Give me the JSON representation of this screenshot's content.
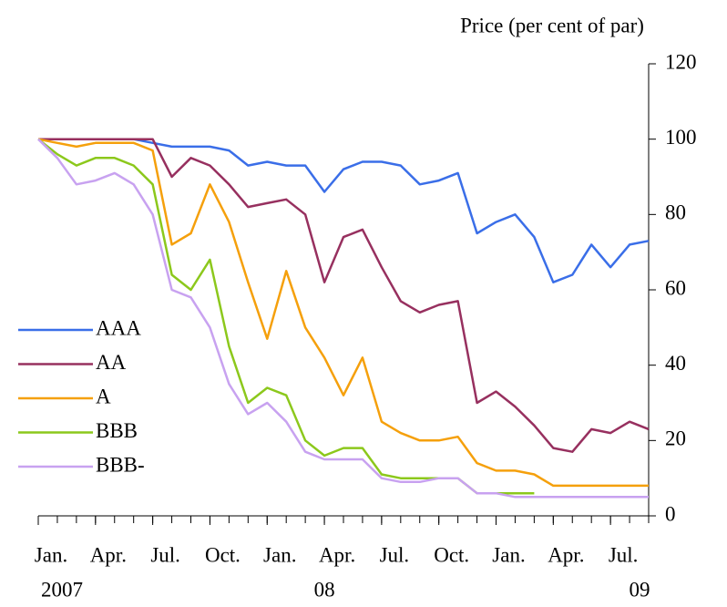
{
  "chart_data": {
    "type": "line",
    "y_label": "Price (per cent of par)",
    "x": [
      "2007-01",
      "2007-02",
      "2007-03",
      "2007-04",
      "2007-05",
      "2007-06",
      "2007-07",
      "2007-08",
      "2007-09",
      "2007-10",
      "2007-11",
      "2007-12",
      "2008-01",
      "2008-02",
      "2008-03",
      "2008-04",
      "2008-05",
      "2008-06",
      "2008-07",
      "2008-08",
      "2008-09",
      "2008-10",
      "2008-11",
      "2008-12",
      "2009-01",
      "2009-02",
      "2009-03",
      "2009-04",
      "2009-05",
      "2009-06",
      "2009-07",
      "2009-08",
      "2009-09"
    ],
    "series": [
      {
        "name": "AAA",
        "color": "#3a6ee8",
        "values": [
          100,
          100,
          100,
          100,
          100,
          100,
          99,
          98,
          98,
          98,
          97,
          93,
          94,
          93,
          93,
          86,
          92,
          94,
          94,
          93,
          88,
          89,
          91,
          75,
          78,
          80,
          74,
          62,
          64,
          72,
          66,
          72,
          73
        ]
      },
      {
        "name": "AA",
        "color": "#97305f",
        "values": [
          100,
          100,
          100,
          100,
          100,
          100,
          100,
          90,
          95,
          93,
          88,
          82,
          83,
          84,
          80,
          62,
          74,
          76,
          66,
          57,
          54,
          56,
          57,
          30,
          33,
          29,
          24,
          18,
          17,
          23,
          22,
          25,
          23
        ]
      },
      {
        "name": "A",
        "color": "#f5a00c",
        "values": [
          100,
          99,
          98,
          99,
          99,
          99,
          97,
          72,
          75,
          88,
          78,
          62,
          47,
          65,
          50,
          42,
          32,
          42,
          25,
          22,
          20,
          20,
          21,
          14,
          12,
          12,
          11,
          8,
          8,
          8,
          8,
          8,
          8
        ]
      },
      {
        "name": "BBB",
        "color": "#8cc81c",
        "values": [
          100,
          96,
          93,
          95,
          95,
          93,
          88,
          64,
          60,
          68,
          45,
          30,
          34,
          32,
          20,
          16,
          18,
          18,
          11,
          10,
          10,
          10,
          10,
          6,
          6,
          6,
          6,
          null,
          null,
          null,
          null,
          null,
          null
        ]
      },
      {
        "name": "BBB-",
        "color": "#c8a2f0",
        "values": [
          100,
          95,
          88,
          89,
          91,
          88,
          80,
          60,
          58,
          50,
          35,
          27,
          30,
          25,
          17,
          15,
          15,
          15,
          10,
          9,
          9,
          10,
          10,
          6,
          6,
          5,
          5,
          5,
          5,
          5,
          5,
          5,
          5
        ]
      }
    ],
    "xlim": [
      "2007-01",
      "2009-09"
    ],
    "xticks": [
      {
        "value": "2007-01",
        "label": "Jan."
      },
      {
        "value": "2007-04",
        "label": "Apr."
      },
      {
        "value": "2007-07",
        "label": "Jul."
      },
      {
        "value": "2007-10",
        "label": "Oct."
      },
      {
        "value": "2008-01",
        "label": "Jan."
      },
      {
        "value": "2008-04",
        "label": "Apr."
      },
      {
        "value": "2008-07",
        "label": "Jul."
      },
      {
        "value": "2008-10",
        "label": "Oct."
      },
      {
        "value": "2009-01",
        "label": "Jan."
      },
      {
        "value": "2009-04",
        "label": "Apr."
      },
      {
        "value": "2009-07",
        "label": "Jul."
      }
    ],
    "year_labels": [
      {
        "value": "2007-01",
        "label": "2007"
      },
      {
        "value": "2008-04",
        "label": "08"
      },
      {
        "value": "2009-09",
        "label": "09"
      }
    ],
    "ylim": [
      0,
      120
    ],
    "yticks": [
      0,
      20,
      40,
      60,
      80,
      100,
      120
    ],
    "y_axis_side": "right"
  }
}
